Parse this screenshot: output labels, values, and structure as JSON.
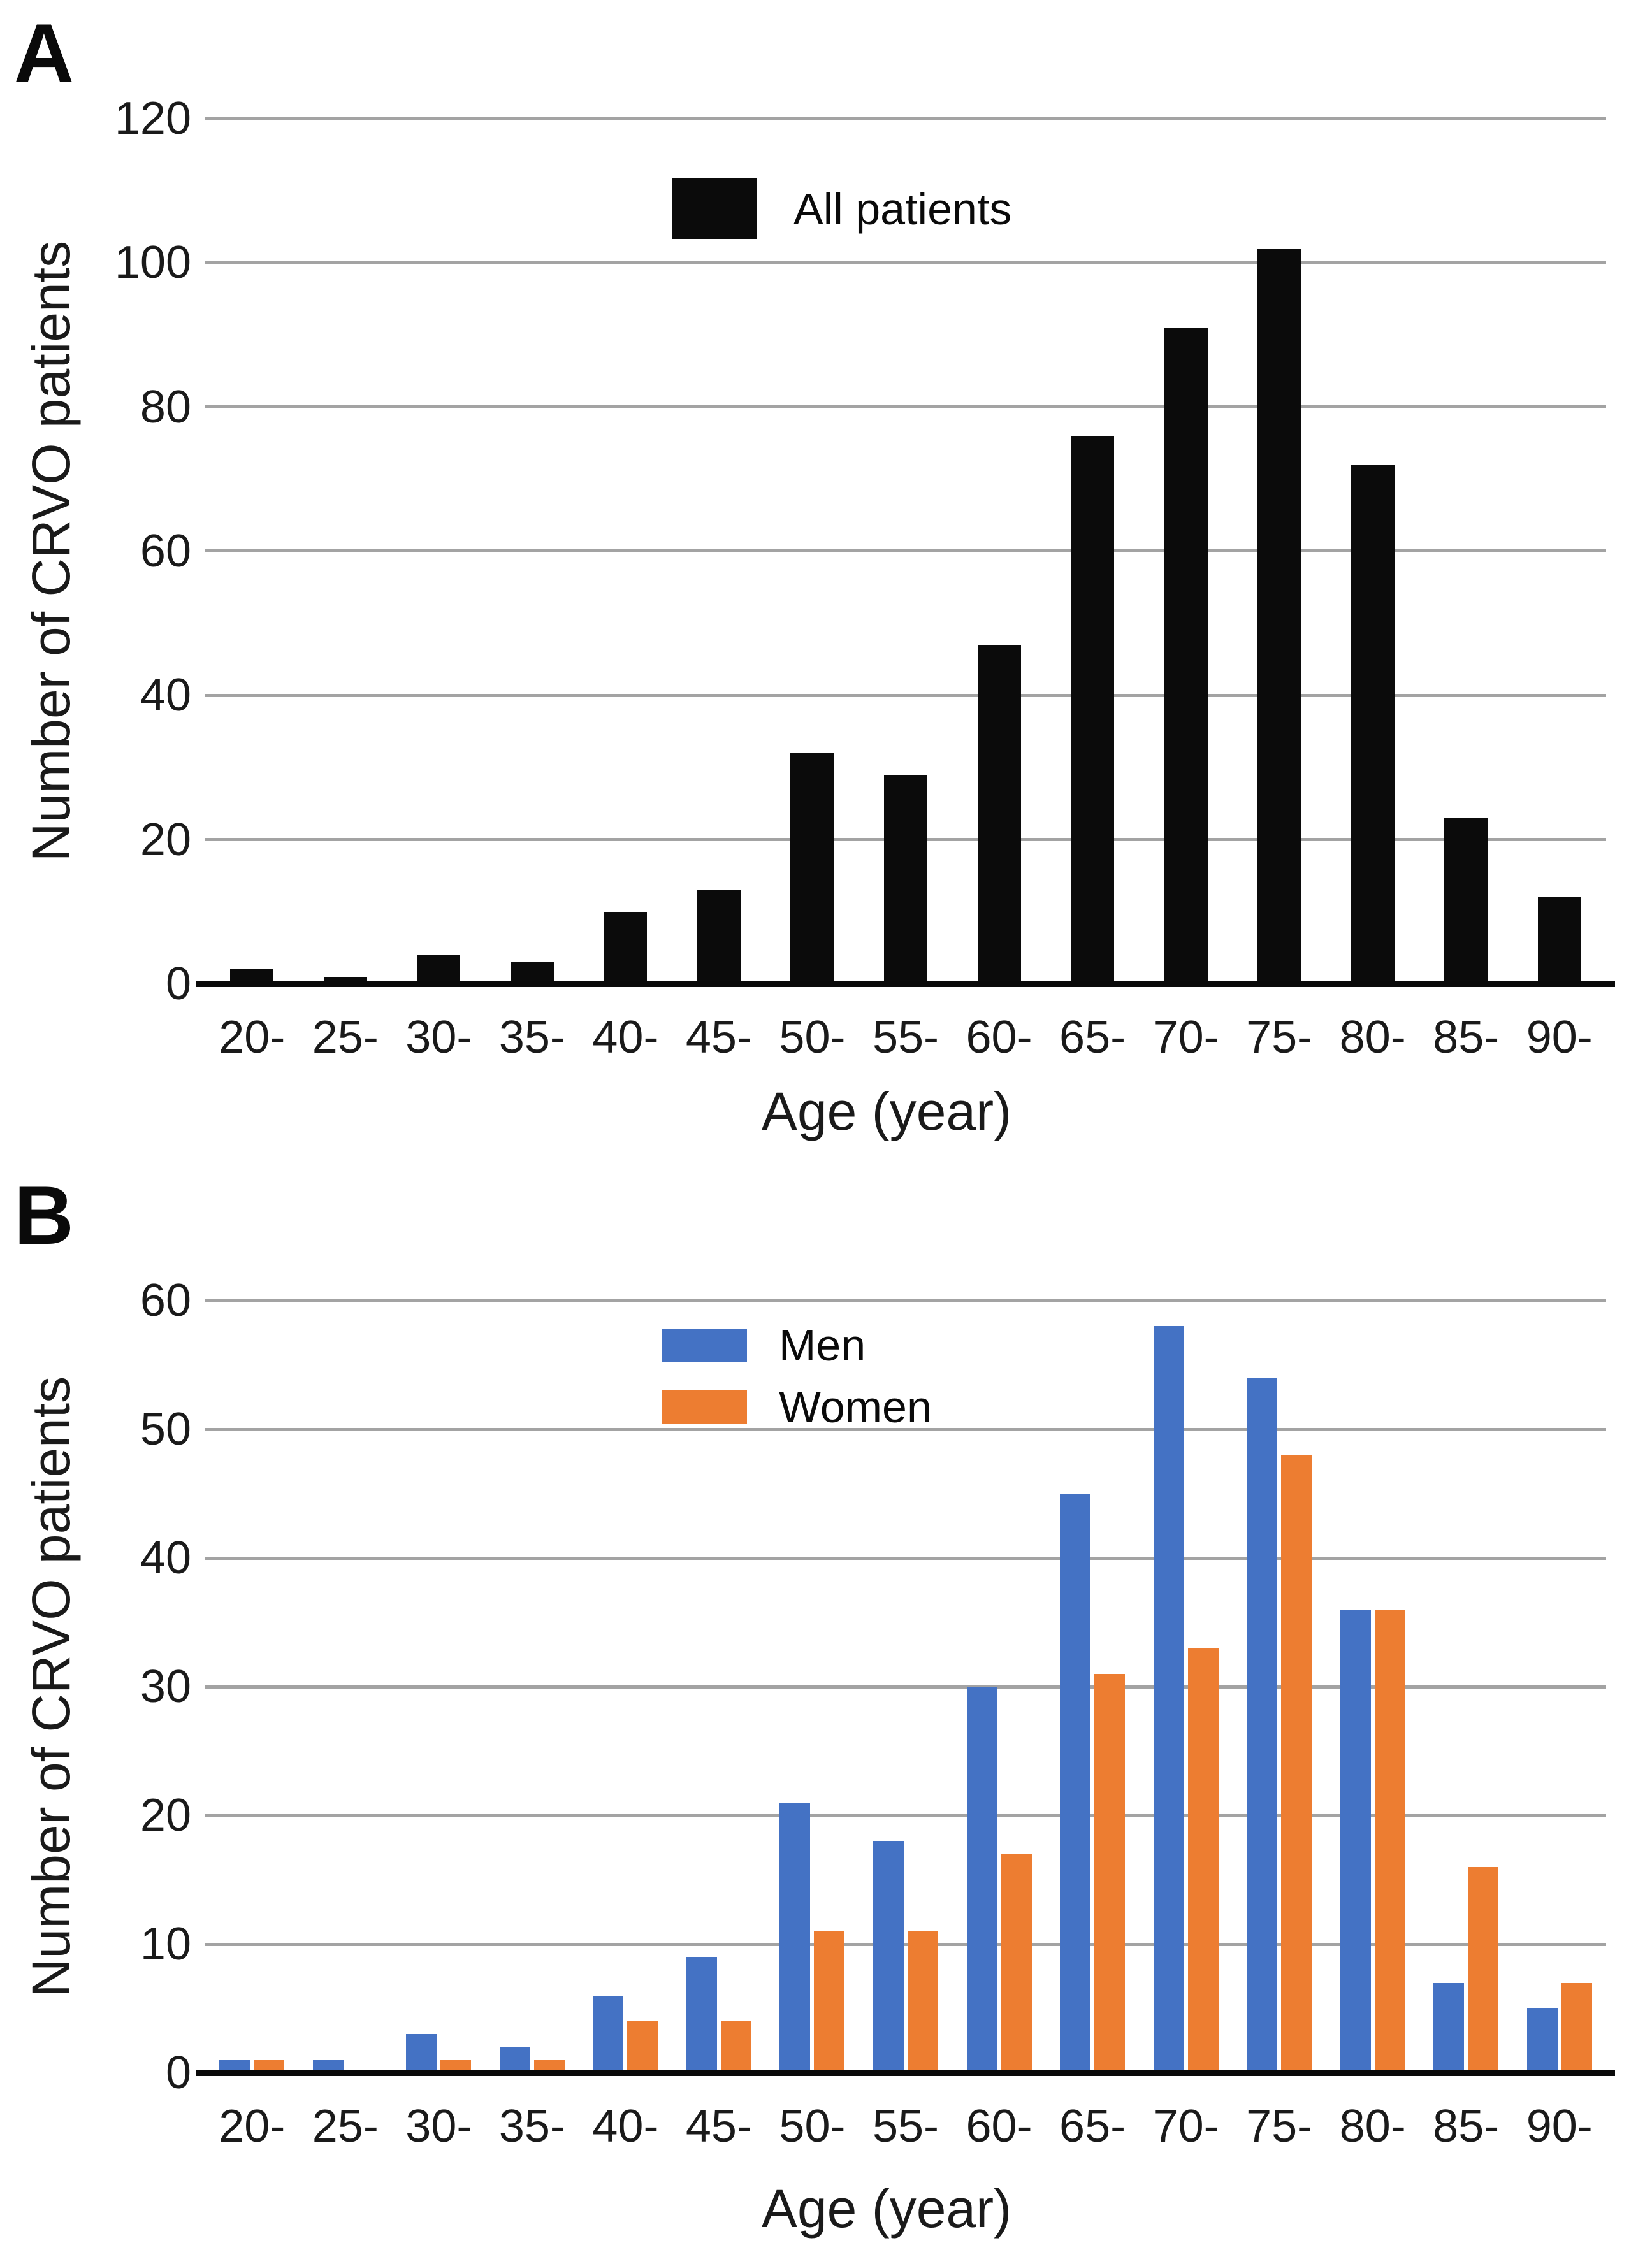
{
  "panels": [
    {
      "letter": "A"
    },
    {
      "letter": "B"
    }
  ],
  "chart_data": [
    {
      "panel": "A",
      "type": "bar",
      "title": "",
      "categories": [
        "20-",
        "25-",
        "30-",
        "35-",
        "40-",
        "45-",
        "50-",
        "55-",
        "60-",
        "65-",
        "70-",
        "75-",
        "80-",
        "85-",
        "90-"
      ],
      "series": [
        {
          "name": "All patients",
          "color": "#0b0b0b",
          "values": [
            2,
            1,
            4,
            3,
            10,
            13,
            32,
            29,
            47,
            76,
            91,
            102,
            72,
            23,
            12
          ]
        }
      ],
      "xlabel": "Age (year)",
      "ylabel": "Number of CRVO patients",
      "ylim": [
        0,
        120
      ],
      "yticks": [
        0,
        20,
        40,
        60,
        80,
        100,
        120
      ],
      "grid": true,
      "legend_position": "inside-top-center"
    },
    {
      "panel": "B",
      "type": "bar",
      "title": "",
      "categories": [
        "20-",
        "25-",
        "30-",
        "35-",
        "40-",
        "45-",
        "50-",
        "55-",
        "60-",
        "65-",
        "70-",
        "75-",
        "80-",
        "85-",
        "90-"
      ],
      "series": [
        {
          "name": "Men",
          "color": "#4472C4",
          "values": [
            1,
            1,
            3,
            2,
            6,
            9,
            21,
            18,
            30,
            45,
            58,
            54,
            36,
            7,
            5
          ]
        },
        {
          "name": "Women",
          "color": "#ED7D31",
          "values": [
            1,
            0,
            1,
            1,
            4,
            4,
            11,
            11,
            17,
            31,
            33,
            48,
            36,
            16,
            7
          ]
        }
      ],
      "xlabel": "Age (year)",
      "ylabel": "Number of CRVO patients",
      "ylim": [
        0,
        60
      ],
      "yticks": [
        0,
        10,
        20,
        30,
        40,
        50,
        60
      ],
      "grid": true,
      "legend_position": "inside-top-center"
    }
  ]
}
